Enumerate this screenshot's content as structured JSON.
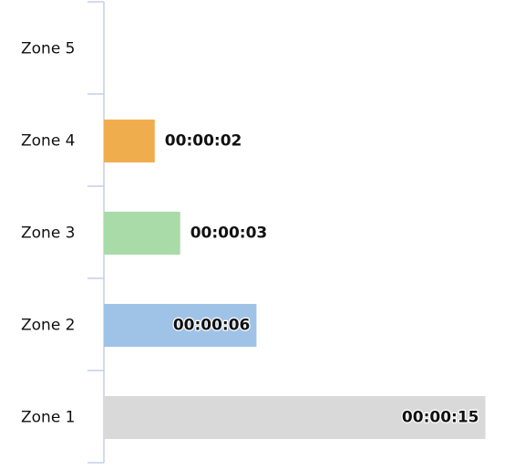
{
  "chart_data": {
    "type": "bar",
    "orientation": "horizontal",
    "categories": [
      "Zone 5",
      "Zone 4",
      "Zone 3",
      "Zone 2",
      "Zone 1"
    ],
    "values_seconds": [
      0,
      2,
      3,
      6,
      15
    ],
    "value_labels": [
      "",
      "00:00:02",
      "00:00:03",
      "00:00:06",
      "00:00:15"
    ],
    "colors": [
      "#d9d9d9",
      "#f0ad4e",
      "#a8dba8",
      "#9fc3e6",
      "#d9d9d9"
    ],
    "axis_color": "#c5cde8",
    "grid": false,
    "legend": "none",
    "title": "",
    "xlabel": "",
    "ylabel": ""
  }
}
